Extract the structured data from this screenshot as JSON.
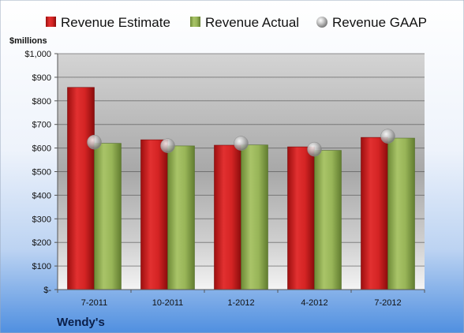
{
  "chart_data": {
    "type": "bar",
    "title": "",
    "company_label": "Wendy's",
    "ylabel": "$millions",
    "xlabel": "",
    "categories": [
      "7-2011",
      "10-2011",
      "1-2012",
      "4-2012",
      "7-2012"
    ],
    "ylim": [
      0,
      1000
    ],
    "y_ticks": [
      0,
      100,
      200,
      300,
      400,
      500,
      600,
      700,
      800,
      900,
      1000
    ],
    "y_tick_labels": [
      "$-",
      "$100",
      "$200",
      "$300",
      "$400",
      "$500",
      "$600",
      "$700",
      "$800",
      "$900",
      "$1,000"
    ],
    "grid": true,
    "legend_position": "top",
    "series": [
      {
        "name": "Revenue Estimate",
        "kind": "bar",
        "color": "#cc2020",
        "values": [
          857,
          635,
          612,
          605,
          645
        ]
      },
      {
        "name": "Revenue Actual",
        "kind": "bar",
        "color": "#8eae50",
        "values": [
          620,
          609,
          613,
          590,
          642
        ]
      },
      {
        "name": "Revenue GAAP",
        "kind": "marker",
        "color": "#b8b8b8",
        "values": [
          625,
          610,
          620,
          595,
          650
        ]
      }
    ]
  }
}
